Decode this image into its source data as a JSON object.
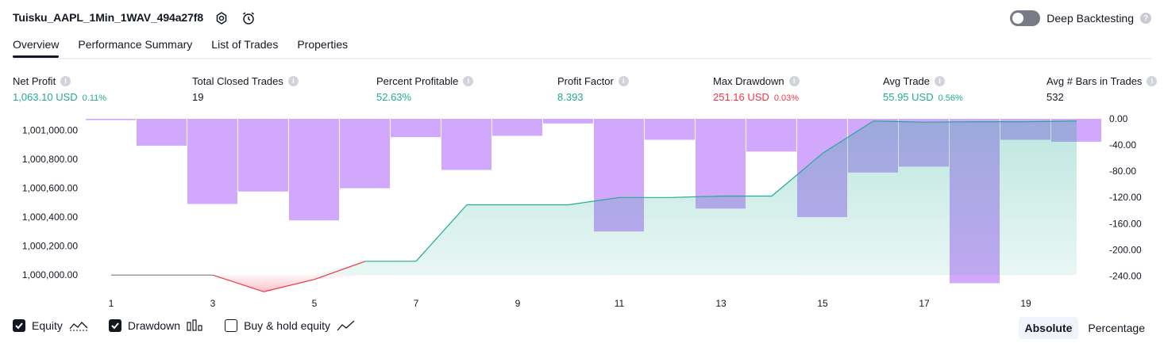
{
  "header": {
    "title": "Tuisku_AAPL_1Min_1WAV_494a27f8",
    "settings_icon": "gear-icon",
    "alert_icon": "alarm-clock-icon",
    "deep_backtesting_label": "Deep Backtesting",
    "deep_backtesting_enabled": false
  },
  "tabs": [
    {
      "label": "Overview",
      "active": true
    },
    {
      "label": "Performance Summary",
      "active": false
    },
    {
      "label": "List of Trades",
      "active": false
    },
    {
      "label": "Properties",
      "active": false
    }
  ],
  "metrics": [
    {
      "label": "Net Profit",
      "value": "1,063.10 USD",
      "percent": "0.11%",
      "color": "#22ab94"
    },
    {
      "label": "Total Closed Trades",
      "value": "19",
      "percent": "",
      "color": "#131722"
    },
    {
      "label": "Percent Profitable",
      "value": "52.63%",
      "percent": "",
      "color": "#22ab94"
    },
    {
      "label": "Profit Factor",
      "value": "8.393",
      "percent": "",
      "color": "#22ab94"
    },
    {
      "label": "Max Drawdown",
      "value": "251.16 USD",
      "percent": "0.03%",
      "color": "#f23645"
    },
    {
      "label": "Avg Trade",
      "value": "55.95 USD",
      "percent": "0.56%",
      "color": "#22ab94"
    },
    {
      "label": "Avg # Bars in Trades",
      "value": "532",
      "percent": "",
      "color": "#131722"
    }
  ],
  "legend": {
    "equity_label": "Equity",
    "equity_checked": true,
    "drawdown_label": "Drawdown",
    "drawdown_checked": true,
    "buyhold_label": "Buy & hold equity",
    "buyhold_checked": false
  },
  "switcher": {
    "absolute_label": "Absolute",
    "percentage_label": "Percentage",
    "active": "Absolute"
  },
  "chart_data": {
    "type": "line",
    "x_tick_labels": [
      "1",
      "3",
      "5",
      "7",
      "9",
      "11",
      "13",
      "15",
      "17",
      "19"
    ],
    "left_axis_ticks": [
      "1,000,000.00",
      "1,000,200.00",
      "1,000,400.00",
      "1,000,600.00",
      "1,000,800.00",
      "1,001,000.00"
    ],
    "right_axis_ticks": [
      "0.00",
      "-40.00",
      "-80.00",
      "-120.00",
      "-160.00",
      "-200.00",
      "-240.00"
    ],
    "left_ylim": [
      999930,
      1001078
    ],
    "right_ylim": [
      -254,
      0
    ],
    "colors": {
      "equity_line": "#22ab94",
      "equity_fill": "#22ab94",
      "equity_negative": "#f23645",
      "drawdown_bar": "#d1a8fb",
      "drawdown_overlap": "#a9b0ea"
    },
    "series": [
      {
        "name": "Equity",
        "x": [
          0,
          1,
          2,
          3,
          4,
          5,
          6,
          7,
          8,
          9,
          10,
          11,
          12,
          13,
          14,
          15,
          16,
          17,
          18,
          19
        ],
        "values": [
          1000000,
          1000000,
          1000000,
          999885,
          999970,
          1000095,
          1000095,
          1000485,
          1000485,
          1000485,
          1000535,
          1000535,
          1000545,
          1000545,
          1000840,
          1001063,
          1001055,
          1001058,
          1001058,
          1001063
        ]
      },
      {
        "name": "Drawdown",
        "trade": [
          1,
          2,
          3,
          4,
          5,
          6,
          7,
          8,
          9,
          10,
          11,
          12,
          13,
          14,
          15,
          16,
          17,
          18,
          19,
          20
        ],
        "values": [
          -2,
          -41,
          -130,
          -111,
          -155,
          -106,
          -28,
          -78,
          -26,
          -7,
          -172,
          -32,
          -137,
          -50,
          -150,
          -82,
          -73,
          -251,
          -32,
          -35
        ]
      }
    ]
  }
}
